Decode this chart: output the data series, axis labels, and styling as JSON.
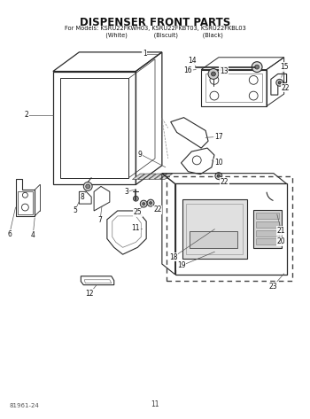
{
  "title": "DISPENSER FRONT PARTS",
  "subtitle": "For Models: KSRU22FKWH03, KSRU22FKBT03, KSRU22FKBL03",
  "subtitle2": "          (White)              (Biscuit)             (Black)",
  "footer_left": "81961-24",
  "footer_center": "11",
  "bg_color": "#ffffff",
  "lc": "#2a2a2a"
}
